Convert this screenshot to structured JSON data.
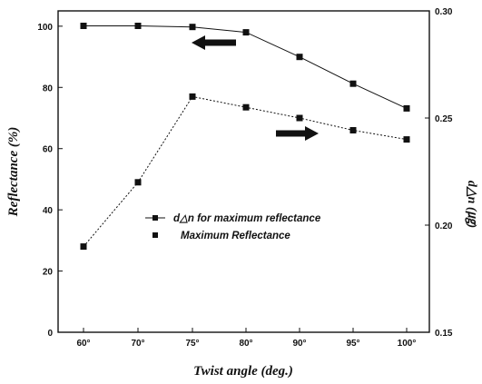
{
  "chart_data": {
    "type": "line",
    "title": "",
    "xlabel": "Twist angle (deg.)",
    "ylabel_left": "Reflectance (%)",
    "ylabel_right": "d△n (㎍)",
    "categories": [
      "60°",
      "70°",
      "75°",
      "80°",
      "90°",
      "95°",
      "100°"
    ],
    "ylim_left": [
      0,
      105
    ],
    "yticks_left": [
      0,
      20,
      40,
      60,
      80,
      100
    ],
    "ylim_right": [
      0.15,
      0.3
    ],
    "yticks_right": [
      "0.15",
      "0.20",
      "0.25",
      "0.30"
    ],
    "series": [
      {
        "name": "d△n for maximum reflectance",
        "axis": "right",
        "line_style": "solid",
        "values": [
          0.293,
          0.293,
          0.2925,
          0.29,
          0.2785,
          0.266,
          0.2545
        ]
      },
      {
        "name": "Maximum Reflectance",
        "axis": "left",
        "line_style": "dotted",
        "values": [
          28,
          49,
          77,
          73.5,
          70,
          66,
          63
        ]
      }
    ],
    "legend_position": "lower-right",
    "grid": false,
    "colors": {
      "line": "#111111",
      "marker": "#111111",
      "arrow": "#111111"
    },
    "annotations": [
      {
        "type": "arrow-left",
        "note": "points to left axis"
      },
      {
        "type": "arrow-right",
        "note": "points to right axis"
      }
    ]
  }
}
